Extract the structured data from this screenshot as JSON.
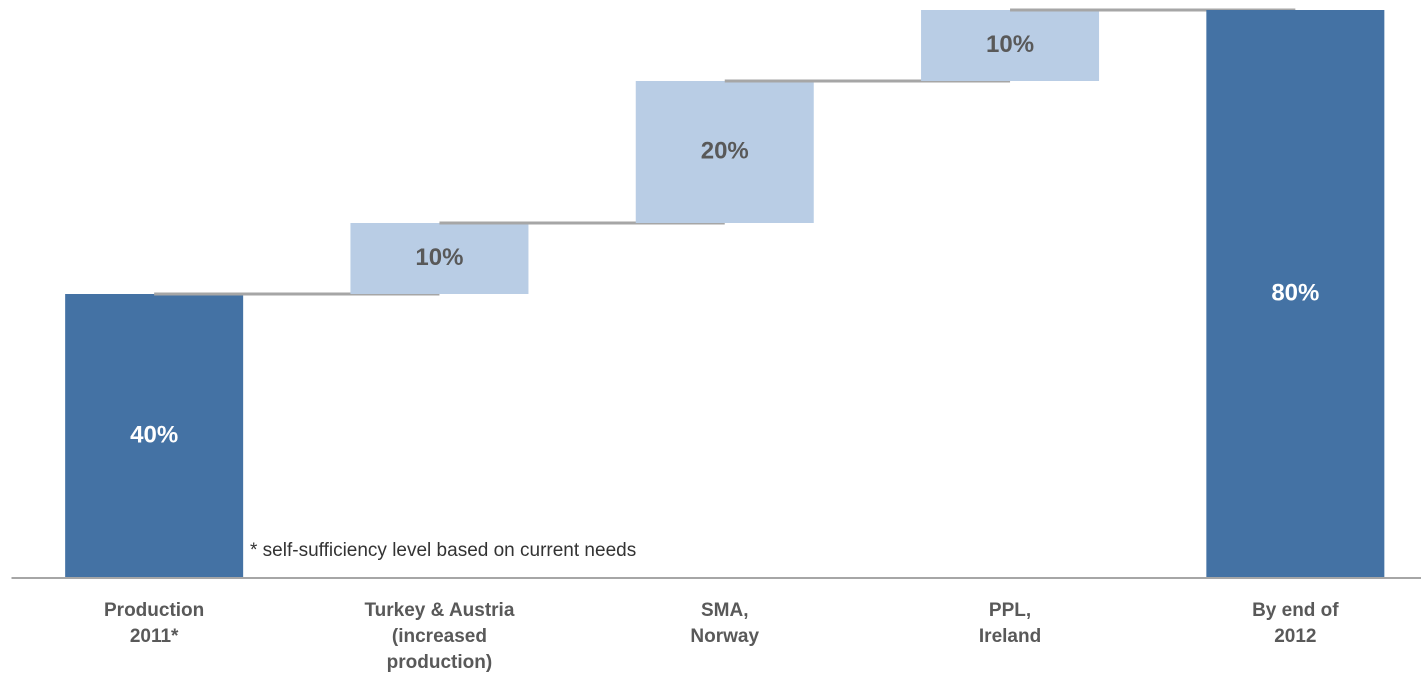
{
  "chart_data": {
    "type": "waterfall",
    "categories": [
      "Production\n2011*",
      "Turkey & Austria\n(increased\nproduction)",
      "SMA,\nNorway",
      "PPL,\nIreland",
      "By end of\n2012"
    ],
    "values": [
      40,
      10,
      20,
      10,
      80
    ],
    "value_labels": [
      "40%",
      "10%",
      "20%",
      "10%",
      "80%"
    ],
    "is_total": [
      true,
      false,
      false,
      false,
      true
    ],
    "total_color": "#4472a4",
    "delta_color": "#b9cde5",
    "ylim": [
      0,
      80
    ],
    "note": "* self-sufficiency level based on current needs"
  }
}
